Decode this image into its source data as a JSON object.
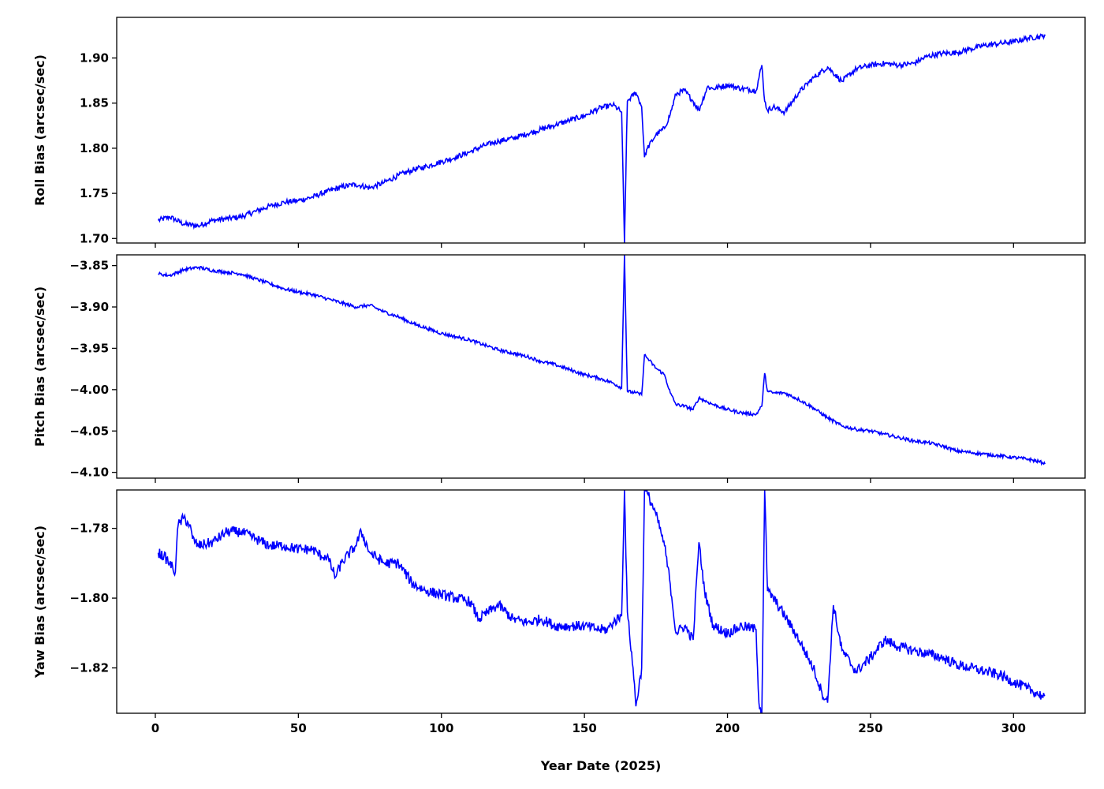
{
  "chart_data": [
    {
      "type": "line",
      "ylabel": "Roll Bias (arcsec/sec)",
      "xlabel": "",
      "xlim": [
        -13.5,
        325
      ],
      "ylim": [
        1.695,
        1.945
      ],
      "yticks": [
        "1.70",
        "1.75",
        "1.80",
        "1.85",
        "1.90"
      ],
      "ytick_values": [
        1.7,
        1.75,
        1.8,
        1.85,
        1.9
      ],
      "xticks": [
        0,
        50,
        100,
        150,
        200,
        250,
        300
      ],
      "show_xtick_labels": false,
      "color": "#0000ff",
      "noise": 0.003,
      "series": [
        {
          "x": [
            1,
            5,
            10,
            15,
            20,
            25,
            30,
            35,
            40,
            45,
            50,
            55,
            60,
            65,
            70,
            75,
            80,
            85,
            90,
            95,
            100,
            105,
            110,
            115,
            120,
            125,
            130,
            135,
            140,
            145,
            150,
            155,
            160,
            163,
            164,
            165,
            168,
            170,
            171,
            172,
            175,
            178,
            180,
            182,
            185,
            188,
            190,
            193,
            195,
            200,
            205,
            210,
            212,
            213,
            214,
            216,
            220,
            225,
            230,
            235,
            240,
            245,
            250,
            255,
            260,
            265,
            270,
            275,
            280,
            285,
            290,
            295,
            300,
            305,
            310,
            311
          ],
          "y": [
            1.72,
            1.724,
            1.716,
            1.714,
            1.72,
            1.722,
            1.724,
            1.73,
            1.736,
            1.74,
            1.742,
            1.746,
            1.752,
            1.757,
            1.76,
            1.756,
            1.762,
            1.77,
            1.776,
            1.78,
            1.785,
            1.79,
            1.796,
            1.803,
            1.808,
            1.811,
            1.816,
            1.821,
            1.826,
            1.831,
            1.836,
            1.844,
            1.848,
            1.84,
            1.695,
            1.852,
            1.862,
            1.846,
            1.79,
            1.8,
            1.815,
            1.822,
            1.838,
            1.86,
            1.864,
            1.852,
            1.842,
            1.868,
            1.866,
            1.87,
            1.866,
            1.864,
            1.892,
            1.852,
            1.842,
            1.846,
            1.84,
            1.862,
            1.878,
            1.89,
            1.874,
            1.888,
            1.892,
            1.894,
            1.892,
            1.894,
            1.902,
            1.905,
            1.906,
            1.91,
            1.914,
            1.916,
            1.918,
            1.922,
            1.924,
            1.926
          ]
        }
      ]
    },
    {
      "type": "line",
      "ylabel": "Pitch Bias (arcsec/sec)",
      "xlabel": "",
      "xlim": [
        -13.5,
        325
      ],
      "ylim": [
        -4.107,
        -3.837
      ],
      "yticks": [
        "−3.85",
        "−3.90",
        "−3.95",
        "−4.00",
        "−4.05",
        "−4.10"
      ],
      "ytick_values": [
        -3.85,
        -3.9,
        -3.95,
        -4.0,
        -4.05,
        -4.1
      ],
      "xticks": [
        0,
        50,
        100,
        150,
        200,
        250,
        300
      ],
      "show_xtick_labels": false,
      "color": "#0000ff",
      "noise": 0.002,
      "series": [
        {
          "x": [
            1,
            5,
            10,
            15,
            20,
            25,
            30,
            35,
            40,
            45,
            50,
            55,
            60,
            65,
            70,
            75,
            80,
            85,
            90,
            95,
            100,
            105,
            110,
            115,
            120,
            125,
            130,
            135,
            140,
            145,
            150,
            155,
            160,
            163,
            164,
            165,
            168,
            170,
            171,
            172,
            175,
            178,
            180,
            182,
            185,
            188,
            190,
            195,
            200,
            205,
            210,
            212,
            213,
            214,
            216,
            220,
            225,
            230,
            235,
            240,
            245,
            250,
            255,
            260,
            265,
            270,
            275,
            280,
            285,
            290,
            295,
            300,
            305,
            310,
            311
          ],
          "y": [
            -3.86,
            -3.862,
            -3.855,
            -3.852,
            -3.856,
            -3.858,
            -3.86,
            -3.866,
            -3.872,
            -3.878,
            -3.882,
            -3.885,
            -3.89,
            -3.895,
            -3.9,
            -3.898,
            -3.906,
            -3.912,
            -3.92,
            -3.926,
            -3.932,
            -3.936,
            -3.94,
            -3.946,
            -3.952,
            -3.956,
            -3.96,
            -3.966,
            -3.97,
            -3.976,
            -3.982,
            -3.986,
            -3.992,
            -3.998,
            -3.837,
            -4.002,
            -4.004,
            -4.006,
            -3.958,
            -3.962,
            -3.974,
            -3.982,
            -4.004,
            -4.018,
            -4.02,
            -4.024,
            -4.01,
            -4.018,
            -4.024,
            -4.028,
            -4.03,
            -4.02,
            -3.98,
            -4.002,
            -4.004,
            -4.004,
            -4.012,
            -4.022,
            -4.034,
            -4.044,
            -4.048,
            -4.05,
            -4.054,
            -4.058,
            -4.062,
            -4.064,
            -4.068,
            -4.074,
            -4.076,
            -4.078,
            -4.08,
            -4.082,
            -4.084,
            -4.088,
            -4.09
          ]
        }
      ]
    },
    {
      "type": "line",
      "ylabel": "Yaw Bias (arcsec/sec)",
      "xlabel": "Year Date (2025)",
      "xlim": [
        -13.5,
        325
      ],
      "ylim": [
        -1.833,
        -1.769
      ],
      "yticks": [
        "−1.78",
        "−1.80",
        "−1.82"
      ],
      "ytick_values": [
        -1.78,
        -1.8,
        -1.82
      ],
      "xticks": [
        0,
        50,
        100,
        150,
        200,
        250,
        300
      ],
      "xtick_labels": [
        "0",
        "50",
        "100",
        "150",
        "200",
        "250",
        "300"
      ],
      "show_xtick_labels": true,
      "color": "#0000ff",
      "noise": 0.0015,
      "series": [
        {
          "x": [
            1,
            3,
            5,
            7,
            7.5,
            8,
            10,
            12,
            13,
            15,
            20,
            25,
            30,
            35,
            40,
            45,
            50,
            55,
            58,
            60,
            63,
            65,
            70,
            72,
            75,
            80,
            85,
            90,
            95,
            100,
            105,
            110,
            113,
            118,
            120,
            125,
            130,
            135,
            140,
            145,
            150,
            155,
            158,
            160,
            163,
            164,
            165,
            167,
            168,
            170,
            171,
            172,
            175,
            178,
            180,
            182,
            185,
            188,
            190,
            192,
            195,
            200,
            205,
            210,
            211,
            212,
            213,
            214,
            216,
            220,
            225,
            230,
            233,
            235,
            237,
            240,
            245,
            250,
            255,
            260,
            265,
            270,
            275,
            280,
            285,
            290,
            295,
            300,
            305,
            310,
            311
          ],
          "y": [
            -1.787,
            -1.788,
            -1.79,
            -1.7925,
            -1.784,
            -1.779,
            -1.777,
            -1.779,
            -1.783,
            -1.785,
            -1.784,
            -1.781,
            -1.781,
            -1.783,
            -1.785,
            -1.785,
            -1.786,
            -1.786,
            -1.788,
            -1.788,
            -1.794,
            -1.79,
            -1.785,
            -1.781,
            -1.787,
            -1.79,
            -1.79,
            -1.796,
            -1.798,
            -1.799,
            -1.8,
            -1.801,
            -1.806,
            -1.803,
            -1.802,
            -1.806,
            -1.807,
            -1.806,
            -1.808,
            -1.808,
            -1.808,
            -1.809,
            -1.809,
            -1.807,
            -1.805,
            -1.769,
            -1.804,
            -1.82,
            -1.831,
            -1.82,
            -1.769,
            -1.77,
            -1.776,
            -1.785,
            -1.796,
            -1.81,
            -1.808,
            -1.812,
            -1.784,
            -1.798,
            -1.808,
            -1.81,
            -1.808,
            -1.809,
            -1.83,
            -1.833,
            -1.769,
            -1.798,
            -1.8,
            -1.805,
            -1.812,
            -1.82,
            -1.827,
            -1.83,
            -1.802,
            -1.815,
            -1.821,
            -1.817,
            -1.812,
            -1.814,
            -1.815,
            -1.816,
            -1.817,
            -1.819,
            -1.82,
            -1.821,
            -1.822,
            -1.824,
            -1.826,
            -1.828,
            -1.828
          ]
        }
      ]
    }
  ]
}
